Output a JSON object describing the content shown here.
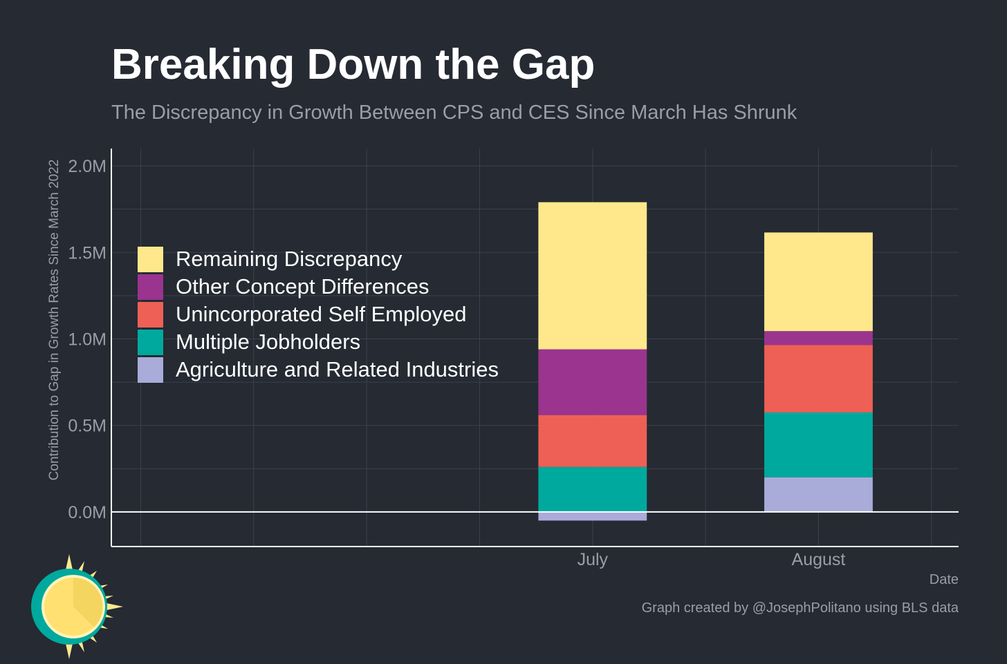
{
  "chart_data": {
    "type": "bar",
    "stacked": true,
    "title": "Breaking Down the Gap",
    "subtitle": "The Discrepancy in Growth Between CPS and CES Since March Has Shrunk",
    "xlabel": "Date",
    "ylabel": "Contribution to Gap in Growth Rates Since March 2022",
    "categories": [
      "July",
      "August"
    ],
    "ylim": [
      -0.2,
      2.1
    ],
    "yticks": [
      0,
      0.5,
      1.0,
      1.5,
      2.0
    ],
    "ytick_labels": [
      "0.0M",
      "0.5M",
      "1.0M",
      "1.5M",
      "2.0M"
    ],
    "grid": true,
    "legend_position": "left",
    "series": [
      {
        "name": "Agriculture and Related Industries",
        "color": "#a9acd8",
        "values": [
          -0.05,
          0.2
        ]
      },
      {
        "name": "Multiple Jobholders",
        "color": "#00a99d",
        "values": [
          0.26,
          0.375
        ]
      },
      {
        "name": "Unincorporated Self Employed",
        "color": "#ee6055",
        "values": [
          0.3,
          0.39
        ]
      },
      {
        "name": "Other Concept Differences",
        "color": "#9a348e",
        "values": [
          0.38,
          0.08
        ]
      },
      {
        "name": "Remaining Discrepancy",
        "color": "#ffe88c",
        "values": [
          0.85,
          0.57
        ]
      }
    ],
    "credit": "Graph created by @JosephPolitano using BLS data"
  }
}
